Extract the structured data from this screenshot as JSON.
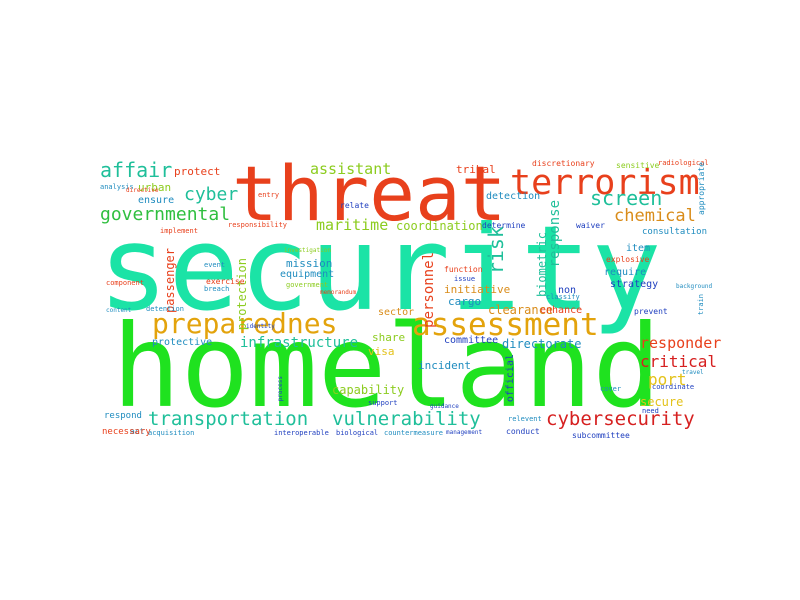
{
  "words": {
    "security": {
      "text": "security",
      "color": "#1be3a6"
    },
    "homeland": {
      "text": "homeland",
      "color": "#1fe21f"
    },
    "threat": {
      "text": "threat",
      "color": "#e8401c"
    },
    "terrorism": {
      "text": "terrorism",
      "color": "#e8401c"
    },
    "preparednes": {
      "text": "preparednes",
      "color": "#e3a30c"
    },
    "assessment": {
      "text": "assessment",
      "color": "#e3a30c"
    },
    "transportation": {
      "text": "transportation",
      "color": "#1fbf9a"
    },
    "vulnerability": {
      "text": "vulnerability",
      "color": "#1fbf9a"
    },
    "cybersecurity": {
      "text": "cybersecurity",
      "color": "#d62020"
    },
    "governmental": {
      "text": "governmental",
      "color": "#2fbf3f"
    },
    "affair": {
      "text": "affair",
      "color": "#1fbf9a"
    },
    "cyber": {
      "text": "cyber",
      "color": "#1fbf9a"
    },
    "screen": {
      "text": "screen",
      "color": "#1fbf9a"
    },
    "chemical": {
      "text": "chemical",
      "color": "#d98c1a"
    },
    "infrastructure": {
      "text": "infrastructure",
      "color": "#1fbf9a"
    },
    "port": {
      "text": "port",
      "color": "#e3c21a"
    },
    "critical": {
      "text": "critical",
      "color": "#d62020"
    },
    "responder": {
      "text": "responder",
      "color": "#e8401c"
    },
    "risk": {
      "text": "risk",
      "color": "#1fbf9a"
    },
    "maritime": {
      "text": "maritime",
      "color": "#8ccc1f"
    },
    "assistant": {
      "text": "assistant",
      "color": "#8ccc1f"
    },
    "coordination": {
      "text": "coordination",
      "color": "#8ccc1f"
    },
    "personnel": {
      "text": "personnel",
      "color": "#e8401c"
    },
    "capability": {
      "text": "capability",
      "color": "#8ccc1f"
    },
    "response": {
      "text": "response",
      "color": "#1fbf9a"
    },
    "biometric": {
      "text": "biometric",
      "color": "#1fbf9a"
    },
    "protection": {
      "text": "protection",
      "color": "#8ccc1f"
    },
    "passenger": {
      "text": "passenger",
      "color": "#e8401c"
    },
    "protective": {
      "text": "protective",
      "color": "#1f8cbf"
    },
    "secure": {
      "text": "secure",
      "color": "#e3c21a"
    },
    "mission": {
      "text": "mission",
      "color": "#1f8cbf"
    },
    "equipment": {
      "text": "equipment",
      "color": "#1f8cbf"
    },
    "initiative": {
      "text": "initiative",
      "color": "#d98c1a"
    },
    "cargo": {
      "text": "cargo",
      "color": "#1f8cbf"
    },
    "clearance": {
      "text": "clearance",
      "color": "#d98c1a"
    },
    "enhance": {
      "text": "enhance",
      "color": "#e8401c"
    },
    "sector": {
      "text": "sector",
      "color": "#d98c1a"
    },
    "directorate": {
      "text": "directorate",
      "color": "#1f8cbf"
    },
    "committee": {
      "text": "committee",
      "color": "#1f3fbf"
    },
    "incident": {
      "text": "incident",
      "color": "#1f8cbf"
    },
    "share": {
      "text": "share",
      "color": "#8ccc1f"
    },
    "visa": {
      "text": "visa",
      "color": "#e3c21a"
    },
    "detection": {
      "text": "detection",
      "color": "#1f8cbf"
    },
    "determine": {
      "text": "determine",
      "color": "#1f3fbf"
    },
    "consultation": {
      "text": "consultation",
      "color": "#1f8cbf"
    },
    "item": {
      "text": "item",
      "color": "#1f8cbf"
    },
    "require": {
      "text": "require",
      "color": "#1f8cbf"
    },
    "strategy": {
      "text": "strategy",
      "color": "#1f3fbf"
    },
    "tribal": {
      "text": "tribal",
      "color": "#e8401c"
    },
    "protect": {
      "text": "protect",
      "color": "#e8401c"
    },
    "urban": {
      "text": "urban",
      "color": "#8ccc1f"
    },
    "ensure": {
      "text": "ensure",
      "color": "#1f8cbf"
    },
    "non": {
      "text": "non",
      "color": "#1f3fbf"
    },
    "official": {
      "text": "official",
      "color": "#1f3fbf"
    },
    "function": {
      "text": "function",
      "color": "#e8401c"
    },
    "issue": {
      "text": "issue",
      "color": "#1f3fbf"
    },
    "discretionary": {
      "text": "discretionary",
      "color": "#e8401c"
    },
    "sensitive": {
      "text": "sensitive",
      "color": "#8ccc1f"
    },
    "radiological": {
      "text": "radiological",
      "color": "#e8401c"
    },
    "appropriate": {
      "text": "appropriate",
      "color": "#1f8cbf"
    },
    "respond": {
      "text": "respond",
      "color": "#1f8cbf"
    },
    "necessary": {
      "text": "necessary",
      "color": "#e8401c"
    },
    "acquisition": {
      "text": "acquisition",
      "color": "#1f8cbf"
    },
    "countermeasure": {
      "text": "countermeasure",
      "color": "#1f8cbf"
    },
    "conduct": {
      "text": "conduct",
      "color": "#1f3fbf"
    },
    "subcommittee": {
      "text": "subcommittee",
      "color": "#1f3fbf"
    },
    "explosive": {
      "text": "explosive",
      "color": "#e8401c"
    },
    "prevent": {
      "text": "prevent",
      "color": "#1f3fbf"
    },
    "coordinate": {
      "text": "coordinate",
      "color": "#1f3fbf"
    },
    "exercise": {
      "text": "exercise",
      "color": "#e8401c"
    },
    "event": {
      "text": "event",
      "color": "#1f8cbf"
    },
    "breach": {
      "text": "breach",
      "color": "#1f8cbf"
    },
    "implement": {
      "text": "implement",
      "color": "#e8401c"
    },
    "component": {
      "text": "component",
      "color": "#e8401c"
    },
    "detention": {
      "text": "detention",
      "color": "#1f8cbf"
    },
    "relate": {
      "text": "relate",
      "color": "#1f3fbf"
    },
    "support": {
      "text": "support",
      "color": "#1f3fbf"
    },
    "waiver": {
      "text": "waiver",
      "color": "#1f3fbf"
    },
    "investigation": {
      "text": "investigation",
      "color": "#8ccc1f"
    },
    "government": {
      "text": "government",
      "color": "#8ccc1f"
    },
    "entry": {
      "text": "entry",
      "color": "#e8401c"
    },
    "analysis": {
      "text": "analysis",
      "color": "#1f8cbf"
    },
    "act": {
      "text": "act",
      "color": "#1f8cbf"
    },
    "content": {
      "text": "content",
      "color": "#1f8cbf"
    },
    "need": {
      "text": "need",
      "color": "#1f3fbf"
    },
    "travel": {
      "text": "travel",
      "color": "#1f8cbf"
    },
    "train": {
      "text": "train",
      "color": "#1f8cbf"
    },
    "cover": {
      "text": "cover",
      "color": "#1f8cbf"
    },
    "identity": {
      "text": "identity",
      "color": "#1f3fbf"
    },
    "interoperable": {
      "text": "interoperable",
      "color": "#1f3fbf"
    },
    "biological": {
      "text": "biological",
      "color": "#1f3fbf"
    },
    "management": {
      "text": "management",
      "color": "#1f3fbf"
    },
    "relevent": {
      "text": "relevent",
      "color": "#1f8cbf"
    },
    "process": {
      "text": "process",
      "color": "#1f3fbf"
    },
    "classify": {
      "text": "classify",
      "color": "#1f8cbf"
    },
    "guidance": {
      "text": "guidance",
      "color": "#1f3fbf"
    },
    "memorandum": {
      "text": "memorandum",
      "color": "#e8401c"
    },
    "responsibility": {
      "text": "responsibility",
      "color": "#e8401c"
    },
    "directive": {
      "text": "directive",
      "color": "#e8401c"
    },
    "background": {
      "text": "background",
      "color": "#1f8cbf"
    }
  }
}
